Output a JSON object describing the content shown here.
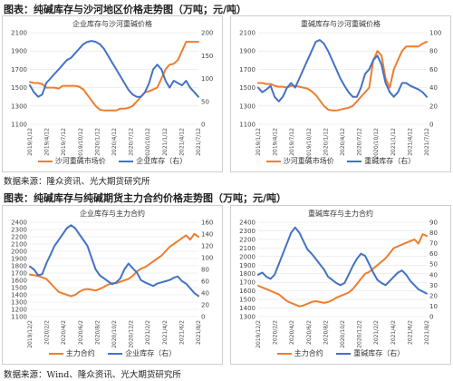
{
  "figures": [
    {
      "title": "图表：纯碱库存与沙河地区价格走势图（万吨；元/吨）",
      "source": "数据来源：隆众资讯、光大期货研究所"
    },
    {
      "title": "图表：纯碱库存与纯碱期货主力合约价格走势图（万吨；元/吨）",
      "source": "数据来源：Wind、隆众资讯、光大期货研究所"
    }
  ],
  "colors": {
    "orange": "#ed7d31",
    "blue": "#4472c4",
    "grid": "#e3e3e3",
    "axis_text": "#444444"
  },
  "chart_data": [
    {
      "type": "line",
      "title": "企业库存与沙河重碱价格",
      "x_ticks": [
        "2019/1/12",
        "2019/4/12",
        "2019/7/12",
        "2019/10/12",
        "2020/1/12",
        "2020/4/12",
        "2020/7/12",
        "2020/10/12",
        "2021/1/12",
        "2021/4/12",
        "2021/7/12"
      ],
      "ylim_left": [
        1100,
        2100
      ],
      "yticks_left": [
        1100,
        1300,
        1500,
        1700,
        1900,
        2100
      ],
      "ylim_right": [
        0,
        200
      ],
      "yticks_right": [
        0,
        50,
        100,
        150,
        200
      ],
      "series": [
        {
          "name": "沙河重碱市场价",
          "axis": "left",
          "color": "#ed7d31",
          "values": [
            1560,
            1550,
            1550,
            1540,
            1500,
            1500,
            1500,
            1490,
            1520,
            1520,
            1520,
            1520,
            1510,
            1480,
            1420,
            1360,
            1300,
            1260,
            1250,
            1250,
            1250,
            1250,
            1270,
            1270,
            1280,
            1300,
            1350,
            1400,
            1450,
            1460,
            1480,
            1500,
            1600,
            1700,
            1750,
            1760,
            1800,
            1900,
            2000,
            2000,
            2000,
            2000
          ]
        },
        {
          "name": "企业库存（右）",
          "axis": "right",
          "color": "#4472c4",
          "values": [
            85,
            70,
            60,
            65,
            90,
            100,
            110,
            120,
            130,
            140,
            145,
            155,
            165,
            175,
            180,
            182,
            180,
            175,
            165,
            150,
            135,
            120,
            105,
            90,
            75,
            65,
            60,
            60,
            70,
            90,
            120,
            130,
            120,
            95,
            80,
            95,
            90,
            85,
            95,
            80,
            70,
            60
          ]
        }
      ]
    },
    {
      "type": "line",
      "title": "重碱库存与沙河重碱价格",
      "x_ticks": [
        "2019/1/12",
        "2019/4/12",
        "2019/7/12",
        "2019/10/12",
        "2020/1/12",
        "2020/4/12",
        "2020/7/12",
        "2020/10/12",
        "2021/1/12",
        "2021/4/12",
        "2021/7/12"
      ],
      "ylim_left": [
        1100,
        2100
      ],
      "yticks_left": [
        1100,
        1300,
        1500,
        1700,
        1900,
        2100
      ],
      "ylim_right": [
        0,
        100
      ],
      "yticks_right": [
        0,
        20,
        40,
        60,
        80,
        100
      ],
      "series": [
        {
          "name": "沙河重碱市场价",
          "axis": "left",
          "color": "#ed7d31",
          "values": [
            1550,
            1550,
            1540,
            1540,
            1520,
            1510,
            1510,
            1500,
            1520,
            1520,
            1510,
            1500,
            1490,
            1460,
            1420,
            1360,
            1300,
            1260,
            1250,
            1250,
            1260,
            1270,
            1280,
            1300,
            1350,
            1400,
            1450,
            1500,
            1800,
            1900,
            1850,
            1600,
            1500,
            1700,
            1800,
            1900,
            1950,
            1950,
            1950,
            1950,
            1980,
            2000
          ]
        },
        {
          "name": "重碱库存（右）",
          "axis": "right",
          "color": "#4472c4",
          "values": [
            40,
            35,
            38,
            42,
            30,
            25,
            30,
            40,
            45,
            40,
            50,
            60,
            70,
            80,
            90,
            92,
            88,
            80,
            70,
            60,
            50,
            42,
            35,
            30,
            30,
            40,
            55,
            60,
            70,
            75,
            65,
            45,
            35,
            30,
            35,
            45,
            45,
            42,
            40,
            38,
            35,
            30
          ]
        }
      ]
    },
    {
      "type": "line",
      "title": "企业库存与主力合约",
      "x_ticks": [
        "2019/12/2",
        "2020/2/2",
        "2020/4/2",
        "2020/6/2",
        "2020/8/2",
        "2020/10/2",
        "2020/12/2",
        "2021/2/2",
        "2021/4/2",
        "2021/6/2",
        "2021/8/2"
      ],
      "ylim_left": [
        1100,
        2400
      ],
      "yticks_left": [
        1100,
        1200,
        1300,
        1400,
        1500,
        1600,
        1700,
        1800,
        1900,
        2000,
        2100,
        2200,
        2300,
        2400
      ],
      "ylim_right": [
        0,
        160
      ],
      "yticks_right": [
        0,
        20,
        40,
        60,
        80,
        100,
        120,
        140,
        160
      ],
      "series": [
        {
          "name": "主力合约",
          "axis": "left",
          "color": "#ed7d31",
          "values": [
            1680,
            1670,
            1660,
            1640,
            1620,
            1560,
            1500,
            1440,
            1420,
            1400,
            1380,
            1400,
            1440,
            1470,
            1480,
            1470,
            1460,
            1480,
            1510,
            1540,
            1560,
            1560,
            1580,
            1600,
            1620,
            1660,
            1720,
            1760,
            1780,
            1820,
            1860,
            1900,
            1940,
            2000,
            2060,
            2100,
            2140,
            2180,
            2220,
            2160,
            2240,
            2200
          ]
        },
        {
          "name": "企业库存（右）",
          "axis": "right",
          "color": "#4472c4",
          "values": [
            85,
            80,
            70,
            72,
            90,
            105,
            120,
            130,
            140,
            150,
            155,
            150,
            140,
            130,
            120,
            100,
            80,
            70,
            65,
            60,
            55,
            58,
            65,
            80,
            90,
            82,
            75,
            62,
            58,
            55,
            52,
            56,
            58,
            60,
            62,
            66,
            68,
            60,
            56,
            48,
            40,
            35
          ]
        }
      ]
    },
    {
      "type": "line",
      "title": "重碱库存与主力合约",
      "x_ticks": [
        "2019/12/2",
        "2020/2/2",
        "2020/4/2",
        "2020/6/2",
        "2020/8/2",
        "2020/10/2",
        "2020/12/2",
        "2021/2/2",
        "2021/4/2",
        "2021/6/2",
        "2021/8/2"
      ],
      "ylim_left": [
        1300,
        2400
      ],
      "yticks_left": [
        1300,
        1400,
        1500,
        1600,
        1700,
        1800,
        1900,
        2000,
        2100,
        2200,
        2300,
        2400
      ],
      "ylim_right": [
        0,
        90
      ],
      "yticks_right": [
        0,
        10,
        20,
        30,
        40,
        50,
        60,
        70,
        80,
        90
      ],
      "series": [
        {
          "name": "主力合约",
          "axis": "left",
          "color": "#ed7d31",
          "values": [
            1660,
            1640,
            1620,
            1600,
            1580,
            1560,
            1520,
            1480,
            1460,
            1440,
            1420,
            1430,
            1450,
            1470,
            1480,
            1470,
            1460,
            1470,
            1490,
            1520,
            1540,
            1560,
            1580,
            1620,
            1680,
            1740,
            1800,
            1820,
            1860,
            1900,
            1940,
            1980,
            2040,
            2100,
            2120,
            2140,
            2160,
            2180,
            2200,
            2150,
            2260,
            2240
          ]
        },
        {
          "name": "重碱库存（右）",
          "axis": "right",
          "color": "#4472c4",
          "values": [
            40,
            42,
            38,
            36,
            40,
            50,
            60,
            70,
            80,
            85,
            80,
            72,
            64,
            60,
            55,
            50,
            45,
            38,
            35,
            32,
            30,
            32,
            40,
            48,
            55,
            60,
            58,
            50,
            42,
            35,
            32,
            30,
            34,
            38,
            42,
            44,
            40,
            34,
            30,
            26,
            24,
            22
          ]
        }
      ]
    }
  ]
}
